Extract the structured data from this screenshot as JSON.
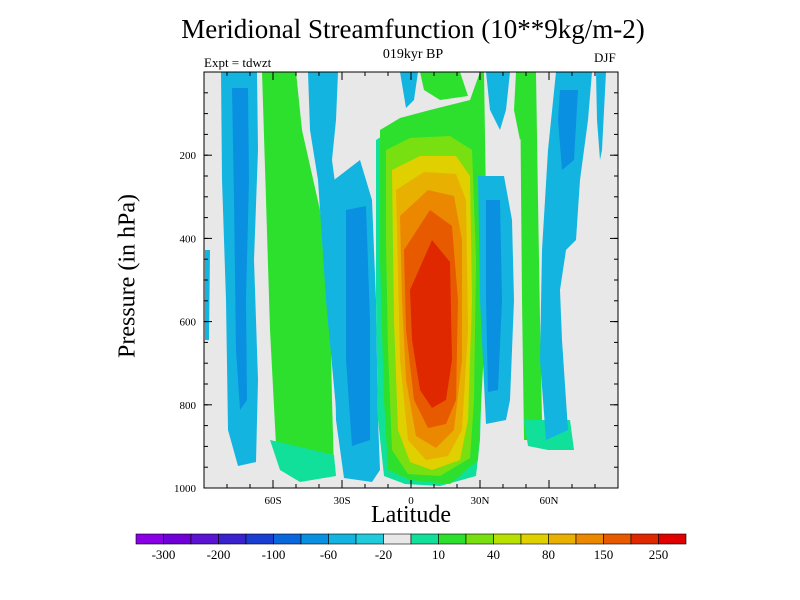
{
  "chart_data": {
    "type": "heatmap",
    "title": "Meridional Streamfunction (10**9kg/m-2)",
    "subtitle": "019kyr BP",
    "left_subtitle": "Expt = tdwzt",
    "right_subtitle": "DJF",
    "xlabel": "Latitude",
    "ylabel": "Pressure (in hPa)",
    "xlim": [
      -90,
      90
    ],
    "ylim": [
      1000,
      0
    ],
    "y_inverted": true,
    "x_ticks": [
      {
        "value": -60,
        "label": "60S"
      },
      {
        "value": -30,
        "label": "30S"
      },
      {
        "value": 0,
        "label": "0"
      },
      {
        "value": 30,
        "label": "30N"
      },
      {
        "value": 60,
        "label": "60N"
      }
    ],
    "y_ticks": [
      {
        "value": 200,
        "label": "200"
      },
      {
        "value": 400,
        "label": "400"
      },
      {
        "value": 600,
        "label": "600"
      },
      {
        "value": 800,
        "label": "800"
      },
      {
        "value": 1000,
        "label": "1000"
      }
    ],
    "colorbar": {
      "orientation": "horizontal",
      "placement": "bottom",
      "labels": [
        "-300",
        "-200",
        "-100",
        "-60",
        "-20",
        "10",
        "40",
        "80",
        "150",
        "250"
      ],
      "colors": [
        "#8a00e6",
        "#7000d8",
        "#5a14d2",
        "#3a22cc",
        "#1a3ed2",
        "#0a68dc",
        "#0a90e0",
        "#14b4e0",
        "#20ccdc",
        "#e8e8e8",
        "#10e09a",
        "#2ee02e",
        "#78e010",
        "#b8e000",
        "#e0d000",
        "#e8b000",
        "#ec8800",
        "#e85a00",
        "#e02800",
        "#e00000"
      ]
    },
    "missing_color": "#e8e8e8",
    "features": [
      {
        "name": "northern-descent-column",
        "lat_range": [
          -80,
          -72
        ],
        "pressure_range": [
          0,
          950
        ],
        "level": "-20 to -60",
        "color": "#14b4e0"
      },
      {
        "name": "southern-green-band",
        "lat_range": [
          -64,
          -52
        ],
        "pressure_range": [
          0,
          980
        ],
        "level": "40",
        "color": "#2ee02e"
      },
      {
        "name": "southern-cyan-band",
        "lat_range": [
          -50,
          -44
        ],
        "pressure_range": [
          0,
          900
        ],
        "level": "-20",
        "color": "#14b4e0"
      },
      {
        "name": "southern-blue-column",
        "lat_range": [
          -32,
          -20
        ],
        "pressure_range": [
          200,
          980
        ],
        "level": "-60",
        "color": "#0a90e0"
      },
      {
        "name": "hadley-cell-maximum",
        "lat_range": [
          -14,
          24
        ],
        "pressure_range": [
          0,
          990
        ],
        "level": ">250",
        "color": "#e02800"
      },
      {
        "name": "northern-cyan-column",
        "lat_range": [
          30,
          40
        ],
        "pressure_range": [
          0,
          900
        ],
        "level": "-20 to -60",
        "color": "#14b4e0"
      },
      {
        "name": "northern-green-strip",
        "lat_range": [
          48,
          52
        ],
        "pressure_range": [
          0,
          950
        ],
        "level": "40",
        "color": "#2ee02e"
      },
      {
        "name": "northern-blue-column",
        "lat_range": [
          54,
          68
        ],
        "pressure_range": [
          0,
          950
        ],
        "level": "-20",
        "color": "#14b4e0"
      }
    ]
  }
}
